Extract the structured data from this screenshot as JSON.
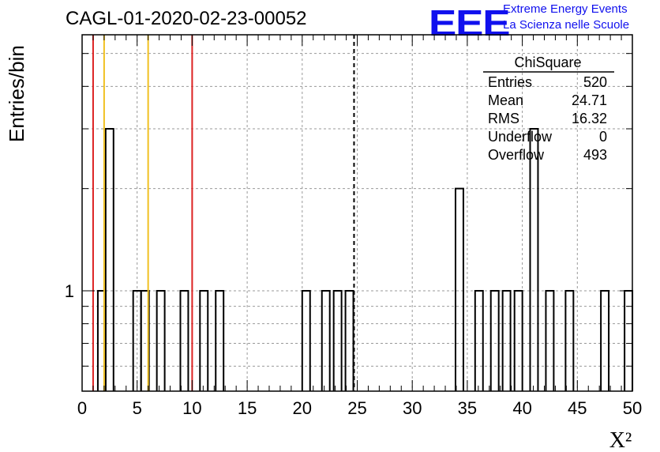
{
  "chart_data": {
    "type": "bar",
    "title": "CAGL-01-2020-02-23-00052",
    "xlabel": "X²",
    "ylabel": "Entries/bin",
    "xlim": [
      0,
      50
    ],
    "ylog": true,
    "grid": true,
    "x_ticks": [
      "0",
      "5",
      "10",
      "15",
      "20",
      "25",
      "30",
      "35",
      "40",
      "45",
      "50"
    ],
    "y_ticks": [
      "1"
    ],
    "bin_width": 0.714,
    "bins": [
      {
        "x": 1.43,
        "y": 1
      },
      {
        "x": 2.14,
        "y": 3
      },
      {
        "x": 4.64,
        "y": 1
      },
      {
        "x": 5.36,
        "y": 1
      },
      {
        "x": 6.79,
        "y": 1
      },
      {
        "x": 8.93,
        "y": 1
      },
      {
        "x": 10.71,
        "y": 1
      },
      {
        "x": 12.14,
        "y": 1
      },
      {
        "x": 20.0,
        "y": 1
      },
      {
        "x": 21.79,
        "y": 1
      },
      {
        "x": 22.86,
        "y": 1
      },
      {
        "x": 23.93,
        "y": 1
      },
      {
        "x": 33.93,
        "y": 2
      },
      {
        "x": 35.71,
        "y": 1
      },
      {
        "x": 37.14,
        "y": 1
      },
      {
        "x": 38.21,
        "y": 1
      },
      {
        "x": 39.29,
        "y": 1
      },
      {
        "x": 40.71,
        "y": 3
      },
      {
        "x": 42.14,
        "y": 1
      },
      {
        "x": 43.93,
        "y": 1
      },
      {
        "x": 47.14,
        "y": 1
      },
      {
        "x": 49.29,
        "y": 1
      }
    ],
    "vertical_lines": [
      {
        "x": 1.0,
        "color": "#dd2222",
        "style": "solid"
      },
      {
        "x": 2.0,
        "color": "#f0c020",
        "style": "solid"
      },
      {
        "x": 6.0,
        "color": "#f0c020",
        "style": "solid"
      },
      {
        "x": 10.0,
        "color": "#dd2222",
        "style": "solid"
      },
      {
        "x": 24.71,
        "color": "#000000",
        "style": "dashed"
      }
    ],
    "stats": {
      "name": "ChiSquare",
      "rows": [
        {
          "label": "Entries",
          "value": "520"
        },
        {
          "label": "Mean",
          "value": "24.71"
        },
        {
          "label": "RMS",
          "value": "16.32"
        },
        {
          "label": "Underflow",
          "value": "0"
        },
        {
          "label": "Overflow",
          "value": "493"
        }
      ]
    }
  },
  "logo": {
    "mark": "EEE",
    "line1": "Extreme Energy Events",
    "line2": "La Scienza nelle Scuole",
    "color": "#1010ee"
  }
}
